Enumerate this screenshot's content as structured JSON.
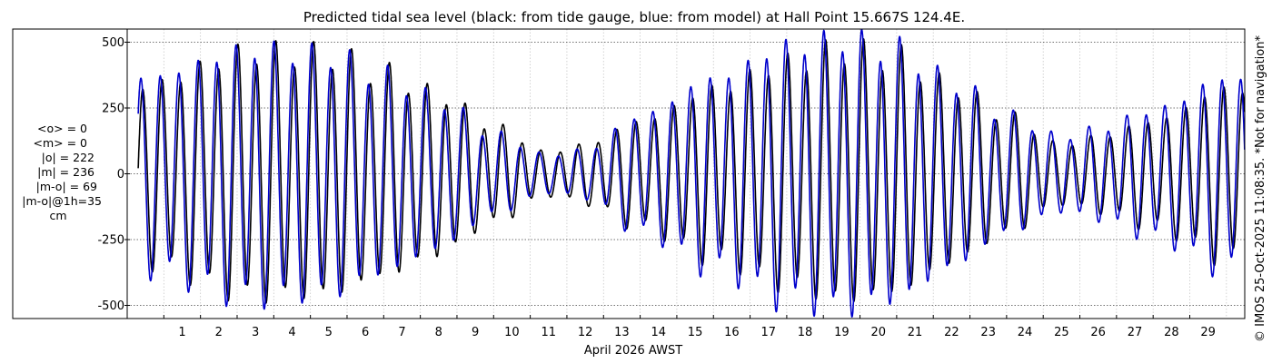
{
  "chart_data": {
    "type": "line",
    "title": "Predicted tidal sea level (black: from tide gauge, blue: from model) at Hall Point 15.667S 124.4E.",
    "xlabel": "April 2026 AWST",
    "ylabel": "",
    "xlim": [
      0.0,
      30.5
    ],
    "ylim": [
      -550,
      550
    ],
    "yticks": [
      500,
      250,
      0,
      -250,
      -500
    ],
    "xtick_labels": [
      "1",
      "2",
      "3",
      "4",
      "5",
      "6",
      "7",
      "8",
      "9",
      "10",
      "11",
      "12",
      "13",
      "14",
      "15",
      "16",
      "17",
      "18",
      "19",
      "20",
      "21",
      "22",
      "23",
      "24",
      "25",
      "26",
      "27",
      "28",
      "29"
    ],
    "grid": true,
    "series": [
      {
        "color": "#000000",
        "amplitude_envelope": {
          "days": [
            0.3,
            3.5,
            5.5,
            7.0,
            8.5,
            10.0,
            11.5,
            12.5,
            14.0,
            16.0,
            18.0,
            19.5,
            21.0,
            22.5,
            24.0,
            25.5,
            26.5,
            28.0,
            30.0
          ],
          "amplitude": [
            330,
            460,
            450,
            380,
            300,
            180,
            80,
            110,
            200,
            320,
            420,
            470,
            440,
            330,
            220,
            110,
            140,
            200,
            320
          ]
        }
      },
      {
        "color": "#0000cc",
        "amplitude_envelope": {
          "days": [
            0.3,
            3.5,
            5.5,
            7.0,
            8.5,
            10.0,
            11.5,
            12.5,
            14.0,
            16.0,
            18.0,
            19.5,
            21.0,
            22.5,
            24.0,
            25.5,
            26.5,
            28.0,
            30.0
          ],
          "amplitude": [
            360,
            470,
            450,
            370,
            280,
            150,
            70,
            90,
            220,
            360,
            480,
            510,
            470,
            350,
            220,
            140,
            170,
            240,
            360
          ]
        }
      }
    ]
  },
  "side_stats": {
    "lines": [
      "<o> = 0",
      "<m> = 0",
      "|o| = 222",
      "|m| = 236",
      "|m-o| = 69",
      "|m-o|@1h=35",
      "cm"
    ]
  },
  "copyright": "© IMOS 25-Oct-2025 11:08:35. *Not for navigation*"
}
